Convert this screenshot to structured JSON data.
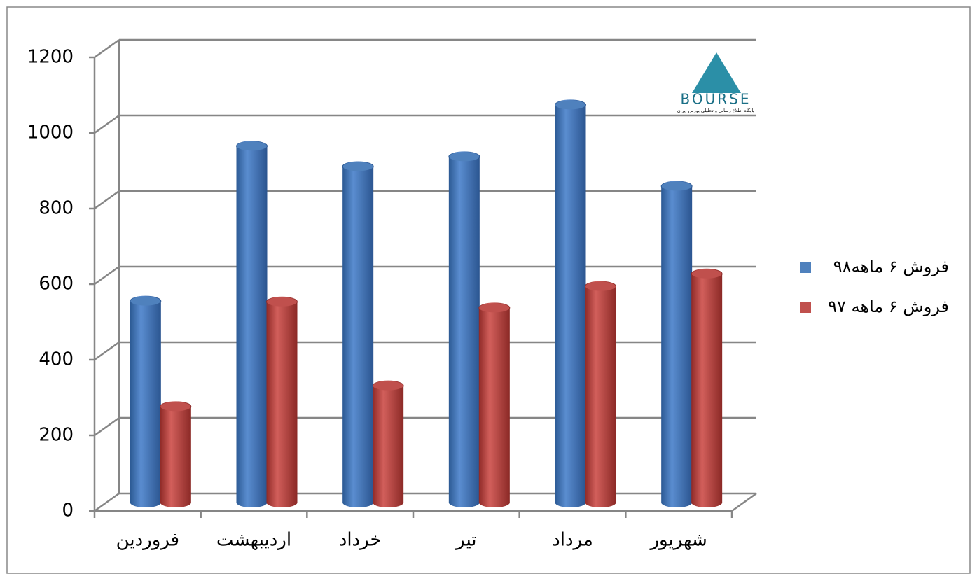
{
  "chart_data": {
    "type": "bar3d",
    "categories": [
      "فروردین",
      "اردیبهشت",
      "خرداد",
      "تیر",
      "مرداد",
      "شهریور"
    ],
    "series": [
      {
        "name": "فروش ۶ ماهه۹۸",
        "color": "#4f81bd",
        "values": [
          533,
          943,
          889,
          915,
          1052,
          837
        ]
      },
      {
        "name": "فروش ۶ ماهه ۹۷",
        "color": "#c0504d",
        "values": [
          254,
          531,
          309,
          515,
          572,
          605
        ]
      }
    ],
    "ylim": [
      0,
      1200
    ],
    "yticks": [
      0,
      200,
      400,
      600,
      800,
      1000,
      1200
    ],
    "grid": true,
    "legend": "right",
    "logo": {
      "name": "BOURSE",
      "tagline": "پایگاه اطلاع رسانی و تحلیلی بورس ایران"
    }
  }
}
